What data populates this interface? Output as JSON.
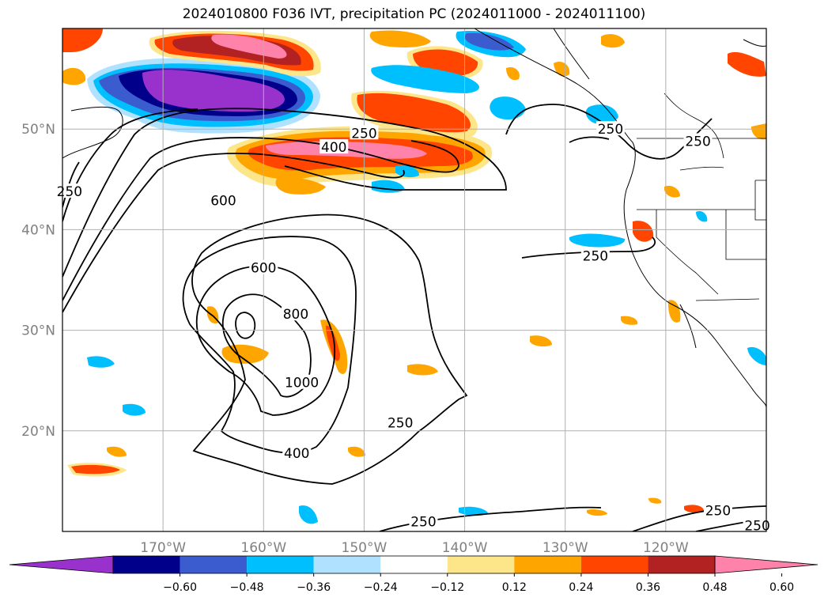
{
  "title": "2024010800 F036 IVT, precipitation PC (2024011000 - 2024011100)",
  "map": {
    "lon_range": [
      -180,
      -110
    ],
    "lat_range": [
      10,
      60
    ],
    "lon_ticks": [
      -170,
      -160,
      -150,
      -140,
      -130,
      -120
    ],
    "lat_ticks": [
      20,
      30,
      40,
      50
    ],
    "lon_tick_labels": [
      "170°W",
      "160°W",
      "150°W",
      "140°W",
      "130°W",
      "120°W"
    ],
    "lat_tick_labels": [
      "20°N",
      "30°N",
      "40°N",
      "50°N"
    ],
    "grid": true,
    "tick_label_color": "#808080"
  },
  "contour_labels": [
    {
      "text": "250",
      "lon": -150,
      "lat": 49.6
    },
    {
      "text": "400",
      "lon": -153,
      "lat": 48.2
    },
    {
      "text": "600",
      "lon": -164,
      "lat": 42.9
    },
    {
      "text": "250",
      "lon": -179.3,
      "lat": 43.8
    },
    {
      "text": "250",
      "lon": -125.5,
      "lat": 50.0
    },
    {
      "text": "250",
      "lon": -116.8,
      "lat": 48.8
    },
    {
      "text": "250",
      "lon": -127,
      "lat": 37.4
    },
    {
      "text": "600",
      "lon": -160,
      "lat": 36.2
    },
    {
      "text": "800",
      "lon": -156.8,
      "lat": 31.6
    },
    {
      "text": "1000",
      "lon": -156.2,
      "lat": 24.8
    },
    {
      "text": "250",
      "lon": -146.4,
      "lat": 20.8
    },
    {
      "text": "400",
      "lon": -156.7,
      "lat": 17.8
    },
    {
      "text": "250",
      "lon": -144.1,
      "lat": 11.0
    },
    {
      "text": "250",
      "lon": -114.8,
      "lat": 12.1
    },
    {
      "text": "250",
      "lon": -110.9,
      "lat": 10.6
    }
  ],
  "colorbar": {
    "colors": [
      "#9932cc",
      "#00008b",
      "#3b5ccf",
      "#00bfff",
      "#b0e2ff",
      "#ffffff",
      "#fde68a",
      "#ffa500",
      "#ff4500",
      "#b22222",
      "#ff82ab"
    ],
    "ticks": [
      "−0.60",
      "−0.48",
      "−0.36",
      "−0.24",
      "−0.12",
      "0.12",
      "0.24",
      "0.36",
      "0.48",
      "0.60"
    ]
  }
}
